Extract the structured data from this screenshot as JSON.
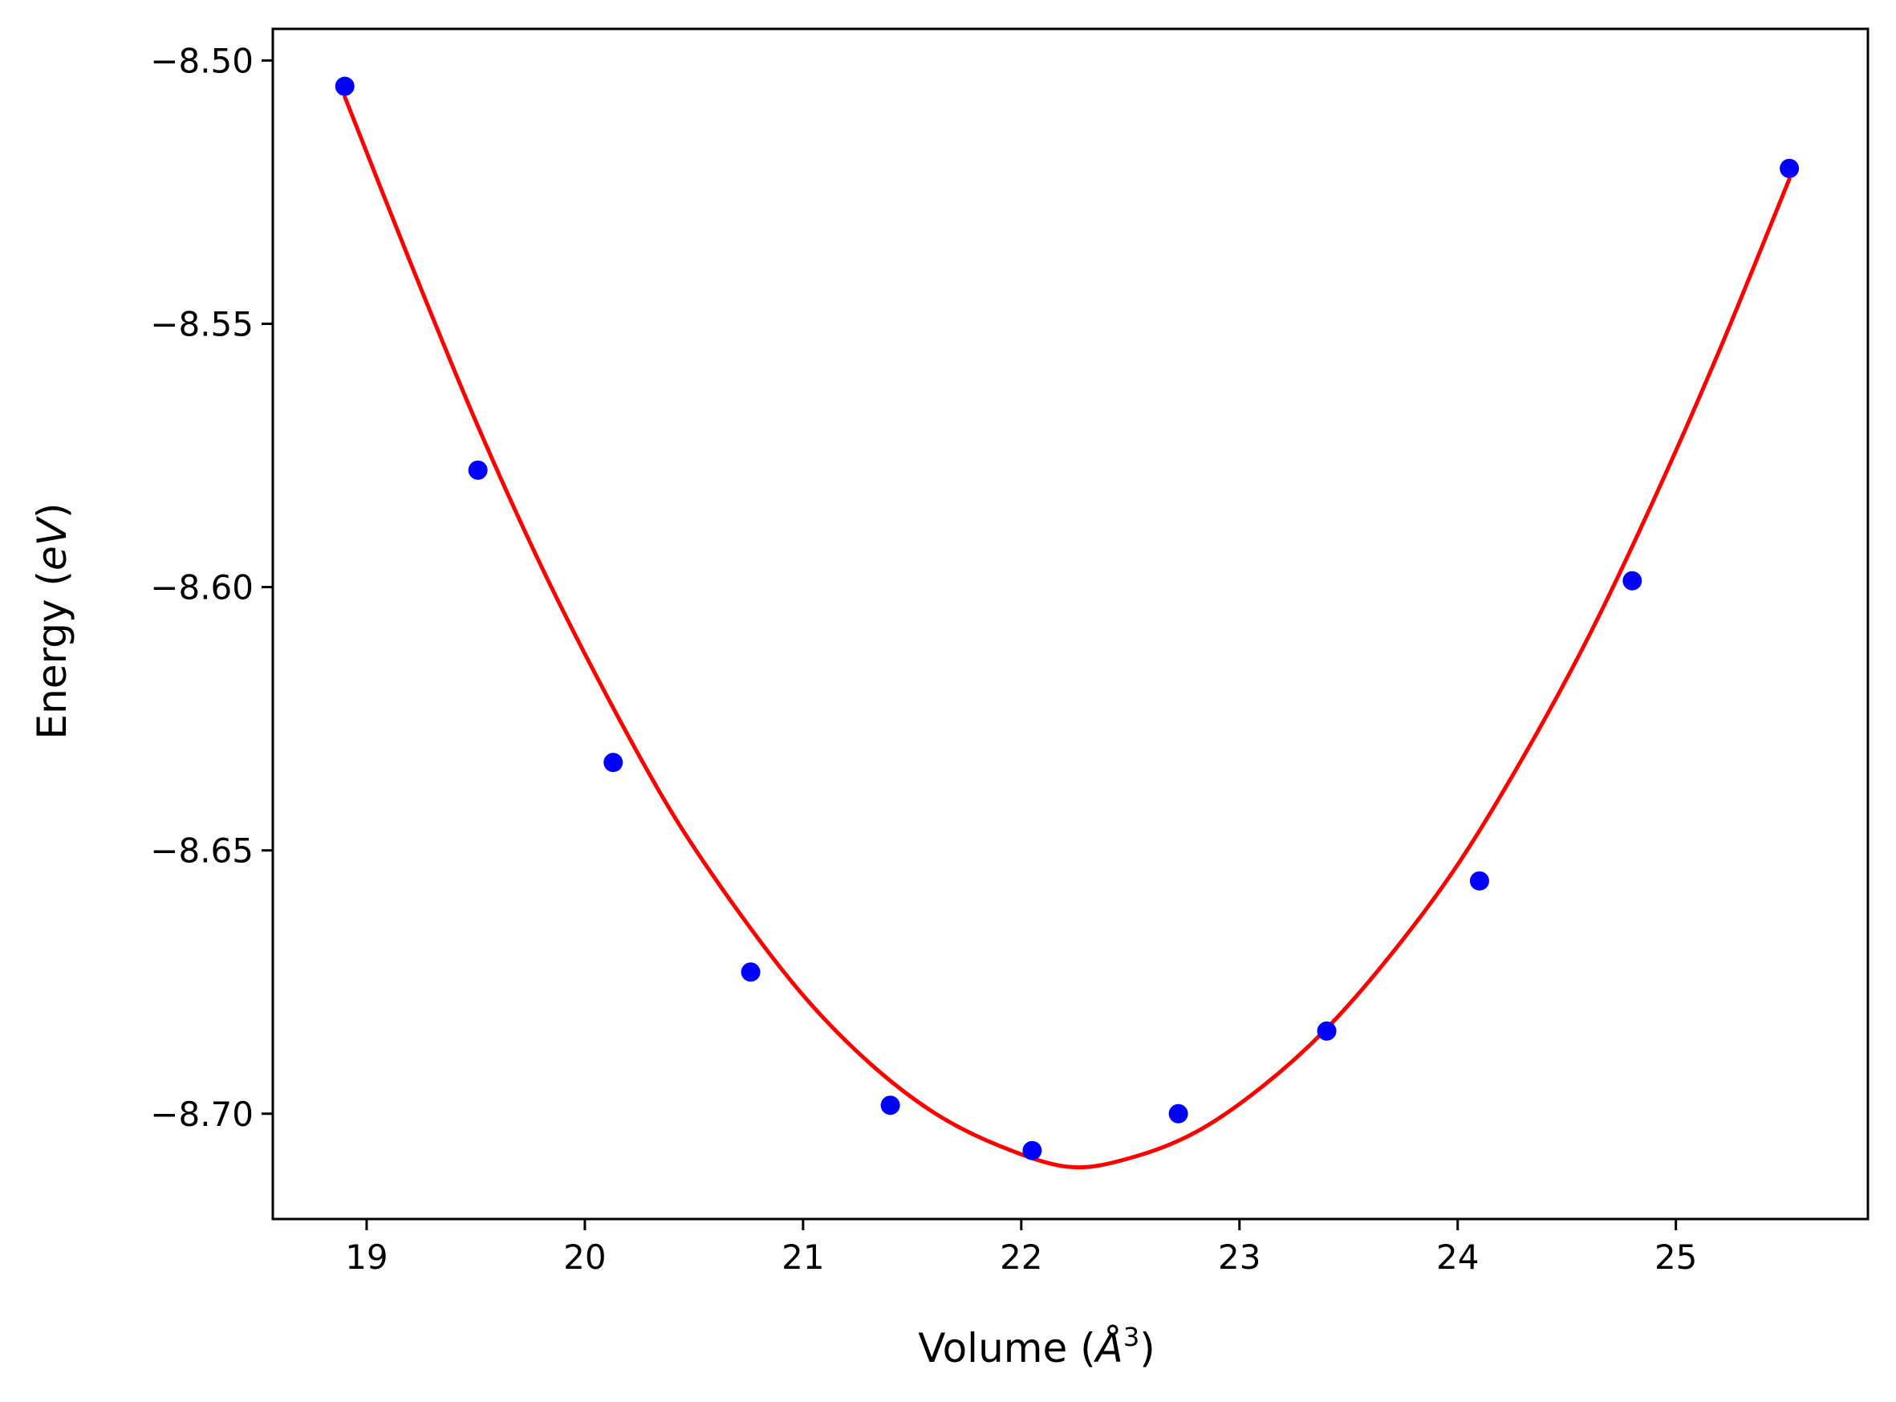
{
  "chart_data": {
    "type": "scatter",
    "title": "",
    "xlabel": {
      "prefix": "Volume (",
      "symbol": "Å",
      "superscript": "3",
      "suffix": ")"
    },
    "ylabel": {
      "prefix": "Energy (",
      "symbol": "eV",
      "suffix": ")"
    },
    "xlim": [
      18.57,
      25.88
    ],
    "ylim": [
      -8.72,
      -8.494
    ],
    "x_ticks": [
      {
        "value": 19,
        "label": "19"
      },
      {
        "value": 20,
        "label": "20"
      },
      {
        "value": 21,
        "label": "21"
      },
      {
        "value": 22,
        "label": "22"
      },
      {
        "value": 23,
        "label": "23"
      },
      {
        "value": 24,
        "label": "24"
      },
      {
        "value": 25,
        "label": "25"
      }
    ],
    "y_ticks": [
      {
        "value": -8.5,
        "label": "−8.50"
      },
      {
        "value": -8.55,
        "label": "−8.55"
      },
      {
        "value": -8.6,
        "label": "−8.60"
      },
      {
        "value": -8.65,
        "label": "−8.65"
      },
      {
        "value": -8.7,
        "label": "−8.70"
      }
    ],
    "grid": false,
    "series": [
      {
        "kind": "scatter",
        "color": "#0000ff",
        "points": [
          {
            "x": 18.9,
            "y": -8.5049
          },
          {
            "x": 19.51,
            "y": -8.5778
          },
          {
            "x": 20.13,
            "y": -8.6333
          },
          {
            "x": 20.76,
            "y": -8.6731
          },
          {
            "x": 21.4,
            "y": -8.6984
          },
          {
            "x": 22.05,
            "y": -8.707
          },
          {
            "x": 22.72,
            "y": -8.7
          },
          {
            "x": 23.4,
            "y": -8.6843
          },
          {
            "x": 24.1,
            "y": -8.6558
          },
          {
            "x": 24.8,
            "y": -8.5988
          },
          {
            "x": 25.52,
            "y": -8.5205
          }
        ]
      },
      {
        "kind": "line",
        "color": "#ff0000",
        "points": [
          {
            "x": 18.9,
            "y": -8.5069
          },
          {
            "x": 19.2,
            "y": -8.5383
          },
          {
            "x": 19.5,
            "y": -8.5685
          },
          {
            "x": 19.8,
            "y": -8.596
          },
          {
            "x": 20.1,
            "y": -8.6206
          },
          {
            "x": 20.4,
            "y": -8.6429
          },
          {
            "x": 20.7,
            "y": -8.6614
          },
          {
            "x": 21.0,
            "y": -8.6775
          },
          {
            "x": 21.3,
            "y": -8.6902
          },
          {
            "x": 21.6,
            "y": -8.6998
          },
          {
            "x": 21.9,
            "y": -8.7061
          },
          {
            "x": 22.22,
            "y": -8.7101
          },
          {
            "x": 22.5,
            "y": -8.7084
          },
          {
            "x": 22.8,
            "y": -8.7035
          },
          {
            "x": 23.1,
            "y": -8.695
          },
          {
            "x": 23.4,
            "y": -8.6838
          },
          {
            "x": 23.7,
            "y": -8.6695
          },
          {
            "x": 24.0,
            "y": -8.6527
          },
          {
            "x": 24.3,
            "y": -8.6323
          },
          {
            "x": 24.6,
            "y": -8.6094
          },
          {
            "x": 24.9,
            "y": -8.5833
          },
          {
            "x": 25.2,
            "y": -8.555
          },
          {
            "x": 25.52,
            "y": -8.5225
          }
        ]
      }
    ]
  }
}
